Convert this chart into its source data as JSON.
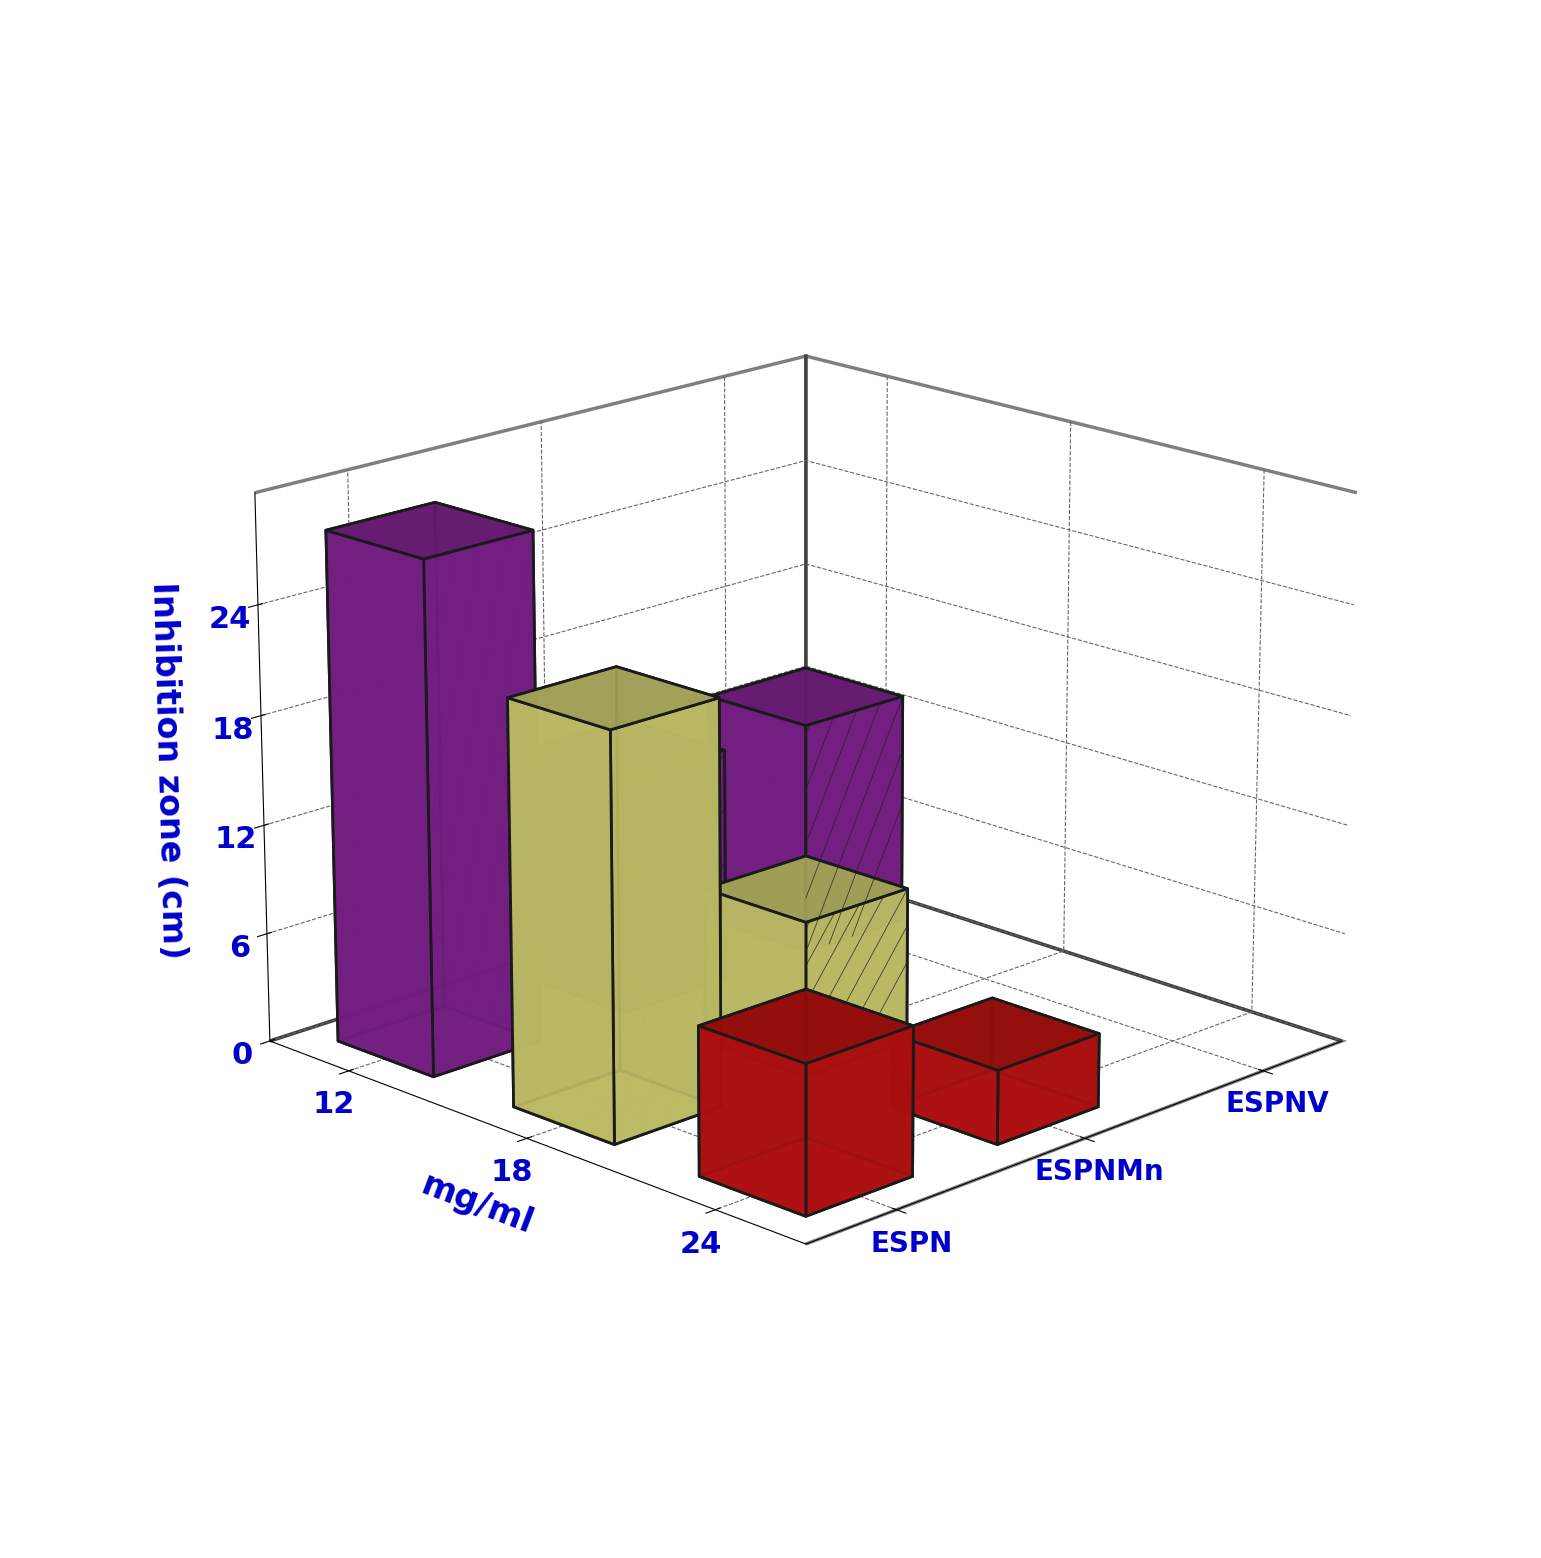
{
  "compounds": [
    "ESPN",
    "ESPNMn",
    "ESPNV"
  ],
  "conc_labels": [
    "24",
    "18",
    "12"
  ],
  "values": {
    "ESPN": [
      8.0,
      22.0,
      28.0
    ],
    "ESPNMn": [
      4.0,
      8.5,
      13.0
    ],
    "ESPNV": [
      0.0,
      0.0,
      13.0
    ]
  },
  "bar_colors": [
    "#CC1111",
    "#DDDD77",
    "#882299"
  ],
  "edge_color": "#1a1a1a",
  "ylabel": "Inhibition zone (cm)",
  "xlabel_conc": "mg/ml",
  "zlim": [
    0,
    30
  ],
  "zticks": [
    0,
    6,
    12,
    18,
    24
  ],
  "label_color": "#0000CC",
  "background_color": "#FFFFFF",
  "elev": 18,
  "azim": 225,
  "bar_width": 0.55,
  "bar_depth": 0.55
}
